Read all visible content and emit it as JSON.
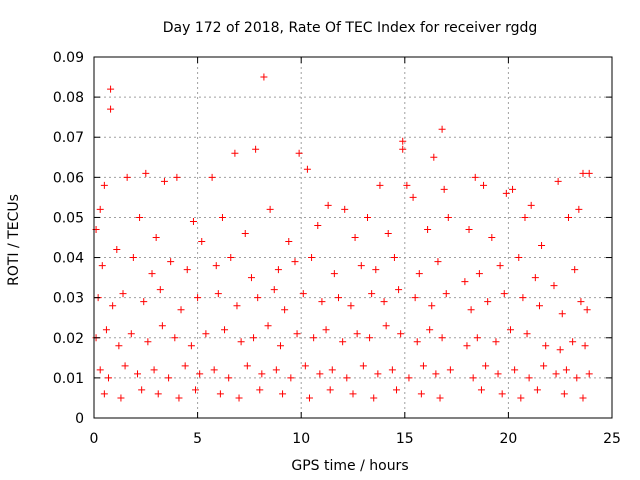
{
  "chart_data": {
    "type": "scatter",
    "title": "Day 172 of 2018, Rate Of TEC Index for receiver rgdg",
    "xlabel": "GPS time / hours",
    "ylabel": "ROTI / TECUs",
    "xlim": [
      0,
      25
    ],
    "ylim": [
      0,
      0.09
    ],
    "xticks": [
      "0",
      "5",
      "10",
      "15",
      "20",
      "25"
    ],
    "yticks": [
      "0",
      "0.01",
      "0.02",
      "0.03",
      "0.04",
      "0.05",
      "0.06",
      "0.07",
      "0.08",
      "0.09"
    ],
    "grid": true,
    "marker": "+",
    "color": "#ff0000",
    "series": [
      {
        "values_note": "dense cloud of ROTI samples, mostly 0.005-0.045 TECU/min, with outliers up to 0.085",
        "points": [
          [
            0.8,
            0.082
          ],
          [
            0.8,
            0.077
          ],
          [
            8.2,
            0.085
          ],
          [
            16.8,
            0.072
          ],
          [
            14.9,
            0.069
          ],
          [
            14.9,
            0.067
          ],
          [
            6.8,
            0.066
          ],
          [
            7.8,
            0.067
          ],
          [
            9.9,
            0.066
          ],
          [
            16.4,
            0.065
          ],
          [
            0.3,
            0.052
          ],
          [
            0.5,
            0.058
          ],
          [
            1.6,
            0.06
          ],
          [
            2.5,
            0.061
          ],
          [
            3.4,
            0.059
          ],
          [
            4.0,
            0.06
          ],
          [
            5.7,
            0.06
          ],
          [
            10.3,
            0.062
          ],
          [
            13.8,
            0.058
          ],
          [
            15.1,
            0.058
          ],
          [
            16.9,
            0.057
          ],
          [
            18.4,
            0.06
          ],
          [
            18.8,
            0.058
          ],
          [
            20.2,
            0.057
          ],
          [
            20.8,
            0.05
          ],
          [
            22.4,
            0.059
          ],
          [
            23.6,
            0.061
          ],
          [
            23.9,
            0.061
          ],
          [
            19.9,
            0.056
          ],
          [
            21.1,
            0.053
          ],
          [
            2.2,
            0.05
          ],
          [
            4.8,
            0.049
          ],
          [
            6.2,
            0.05
          ],
          [
            8.5,
            0.052
          ],
          [
            11.3,
            0.053
          ],
          [
            12.1,
            0.052
          ],
          [
            13.2,
            0.05
          ],
          [
            15.4,
            0.055
          ],
          [
            17.1,
            0.05
          ],
          [
            18.1,
            0.047
          ],
          [
            19.2,
            0.045
          ],
          [
            22.9,
            0.05
          ],
          [
            23.4,
            0.052
          ],
          [
            0.1,
            0.047
          ],
          [
            1.1,
            0.042
          ],
          [
            3.0,
            0.045
          ],
          [
            5.2,
            0.044
          ],
          [
            7.3,
            0.046
          ],
          [
            9.4,
            0.044
          ],
          [
            10.8,
            0.048
          ],
          [
            12.6,
            0.045
          ],
          [
            14.2,
            0.046
          ],
          [
            16.1,
            0.047
          ],
          [
            21.6,
            0.043
          ],
          [
            0.4,
            0.038
          ],
          [
            1.9,
            0.04
          ],
          [
            2.8,
            0.036
          ],
          [
            3.7,
            0.039
          ],
          [
            4.5,
            0.037
          ],
          [
            5.9,
            0.038
          ],
          [
            6.6,
            0.04
          ],
          [
            7.6,
            0.035
          ],
          [
            8.9,
            0.037
          ],
          [
            9.7,
            0.039
          ],
          [
            10.5,
            0.04
          ],
          [
            11.6,
            0.036
          ],
          [
            12.9,
            0.038
          ],
          [
            13.6,
            0.037
          ],
          [
            14.5,
            0.04
          ],
          [
            15.7,
            0.036
          ],
          [
            16.6,
            0.039
          ],
          [
            17.9,
            0.034
          ],
          [
            18.6,
            0.036
          ],
          [
            19.6,
            0.038
          ],
          [
            20.5,
            0.04
          ],
          [
            21.3,
            0.035
          ],
          [
            22.2,
            0.033
          ],
          [
            23.2,
            0.037
          ],
          [
            0.2,
            0.03
          ],
          [
            0.9,
            0.028
          ],
          [
            1.4,
            0.031
          ],
          [
            2.4,
            0.029
          ],
          [
            3.2,
            0.032
          ],
          [
            4.2,
            0.027
          ],
          [
            5.0,
            0.03
          ],
          [
            6.0,
            0.031
          ],
          [
            6.9,
            0.028
          ],
          [
            7.9,
            0.03
          ],
          [
            8.7,
            0.032
          ],
          [
            9.2,
            0.027
          ],
          [
            10.1,
            0.031
          ],
          [
            11.0,
            0.029
          ],
          [
            11.8,
            0.03
          ],
          [
            12.4,
            0.028
          ],
          [
            13.4,
            0.031
          ],
          [
            14.0,
            0.029
          ],
          [
            14.7,
            0.032
          ],
          [
            15.5,
            0.03
          ],
          [
            16.3,
            0.028
          ],
          [
            17.0,
            0.031
          ],
          [
            18.2,
            0.027
          ],
          [
            19.0,
            0.029
          ],
          [
            19.8,
            0.031
          ],
          [
            20.7,
            0.03
          ],
          [
            21.5,
            0.028
          ],
          [
            22.6,
            0.026
          ],
          [
            23.5,
            0.029
          ],
          [
            23.8,
            0.027
          ],
          [
            0.1,
            0.02
          ],
          [
            0.6,
            0.022
          ],
          [
            1.2,
            0.018
          ],
          [
            1.8,
            0.021
          ],
          [
            2.6,
            0.019
          ],
          [
            3.3,
            0.023
          ],
          [
            3.9,
            0.02
          ],
          [
            4.7,
            0.018
          ],
          [
            5.4,
            0.021
          ],
          [
            6.3,
            0.022
          ],
          [
            7.1,
            0.019
          ],
          [
            7.7,
            0.02
          ],
          [
            8.4,
            0.023
          ],
          [
            9.0,
            0.018
          ],
          [
            9.8,
            0.021
          ],
          [
            10.6,
            0.02
          ],
          [
            11.2,
            0.022
          ],
          [
            12.0,
            0.019
          ],
          [
            12.7,
            0.021
          ],
          [
            13.3,
            0.02
          ],
          [
            14.1,
            0.023
          ],
          [
            14.8,
            0.021
          ],
          [
            15.6,
            0.019
          ],
          [
            16.2,
            0.022
          ],
          [
            16.8,
            0.02
          ],
          [
            18.0,
            0.018
          ],
          [
            18.5,
            0.02
          ],
          [
            19.4,
            0.019
          ],
          [
            20.1,
            0.022
          ],
          [
            20.9,
            0.021
          ],
          [
            21.8,
            0.018
          ],
          [
            22.5,
            0.017
          ],
          [
            23.1,
            0.019
          ],
          [
            23.7,
            0.018
          ],
          [
            0.3,
            0.012
          ],
          [
            0.7,
            0.01
          ],
          [
            1.5,
            0.013
          ],
          [
            2.1,
            0.011
          ],
          [
            2.9,
            0.012
          ],
          [
            3.6,
            0.01
          ],
          [
            4.4,
            0.013
          ],
          [
            5.1,
            0.011
          ],
          [
            5.8,
            0.012
          ],
          [
            6.5,
            0.01
          ],
          [
            7.4,
            0.013
          ],
          [
            8.1,
            0.011
          ],
          [
            8.8,
            0.012
          ],
          [
            9.5,
            0.01
          ],
          [
            10.2,
            0.013
          ],
          [
            10.9,
            0.011
          ],
          [
            11.5,
            0.012
          ],
          [
            12.2,
            0.01
          ],
          [
            13.0,
            0.013
          ],
          [
            13.7,
            0.011
          ],
          [
            14.4,
            0.012
          ],
          [
            15.2,
            0.01
          ],
          [
            15.9,
            0.013
          ],
          [
            16.5,
            0.011
          ],
          [
            17.2,
            0.012
          ],
          [
            18.3,
            0.01
          ],
          [
            18.9,
            0.013
          ],
          [
            19.5,
            0.011
          ],
          [
            20.3,
            0.012
          ],
          [
            21.0,
            0.01
          ],
          [
            21.7,
            0.013
          ],
          [
            22.3,
            0.011
          ],
          [
            22.8,
            0.012
          ],
          [
            23.3,
            0.01
          ],
          [
            23.9,
            0.011
          ],
          [
            0.5,
            0.006
          ],
          [
            1.3,
            0.005
          ],
          [
            2.3,
            0.007
          ],
          [
            3.1,
            0.006
          ],
          [
            4.1,
            0.005
          ],
          [
            4.9,
            0.007
          ],
          [
            6.1,
            0.006
          ],
          [
            7.0,
            0.005
          ],
          [
            8.0,
            0.007
          ],
          [
            9.1,
            0.006
          ],
          [
            10.4,
            0.005
          ],
          [
            11.4,
            0.007
          ],
          [
            12.5,
            0.006
          ],
          [
            13.5,
            0.005
          ],
          [
            14.6,
            0.007
          ],
          [
            15.8,
            0.006
          ],
          [
            16.7,
            0.005
          ],
          [
            18.7,
            0.007
          ],
          [
            19.7,
            0.006
          ],
          [
            20.6,
            0.005
          ],
          [
            21.4,
            0.007
          ],
          [
            22.7,
            0.006
          ],
          [
            23.6,
            0.005
          ]
        ]
      }
    ]
  }
}
